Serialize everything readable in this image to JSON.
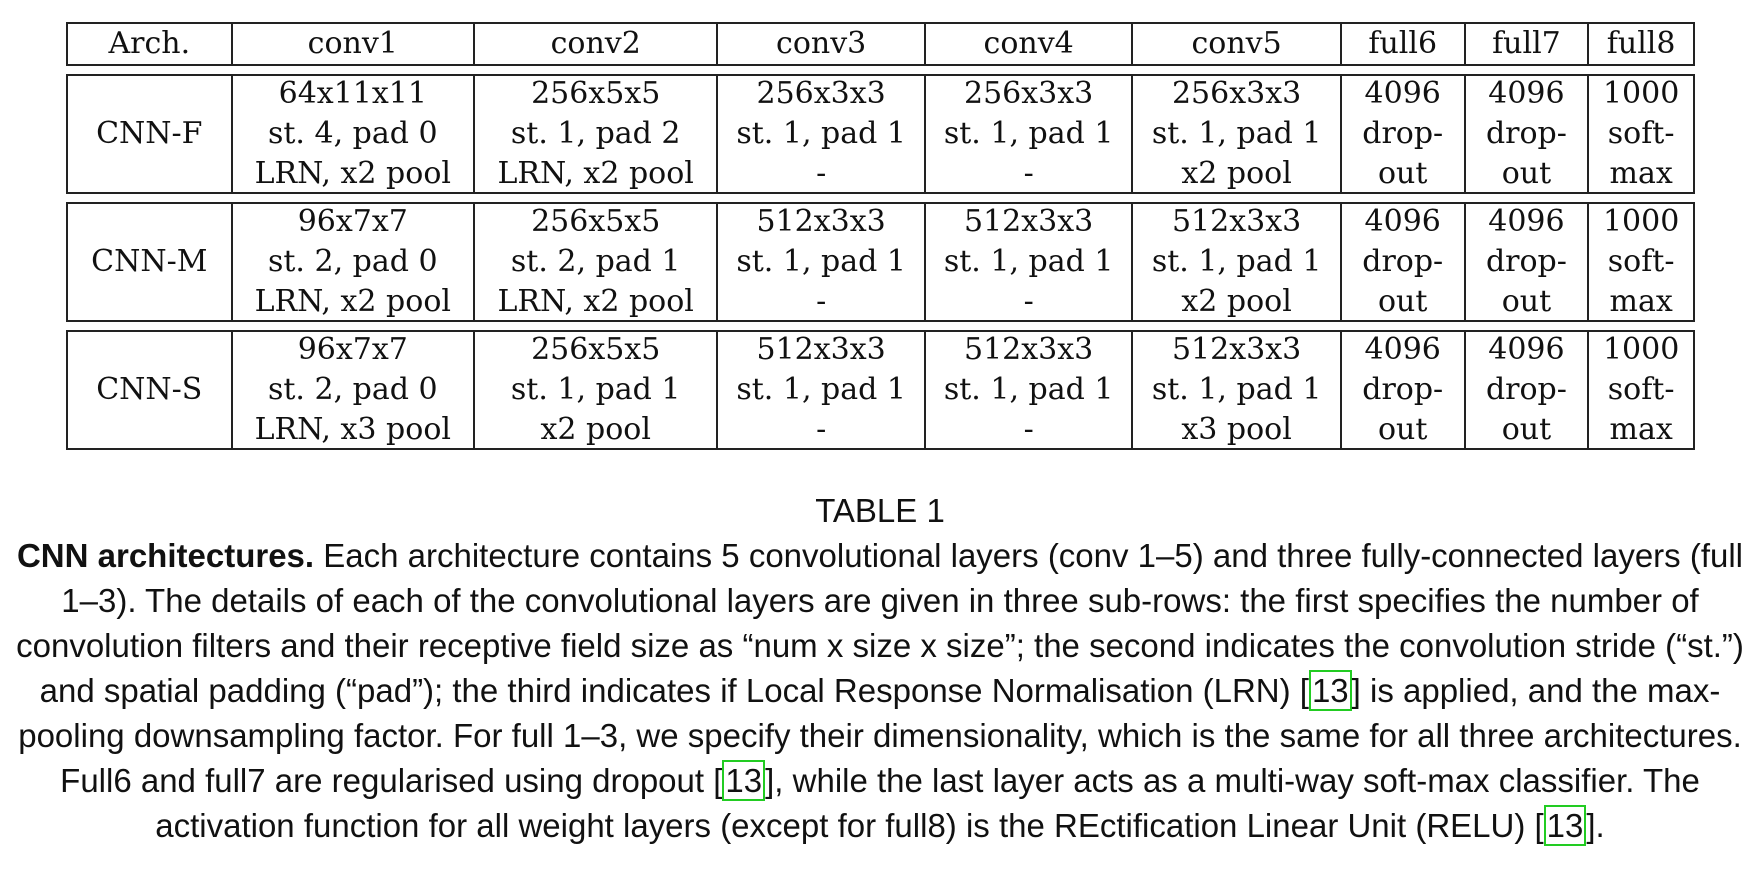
{
  "table": {
    "header": [
      "Arch.",
      "conv1",
      "conv2",
      "conv3",
      "conv4",
      "conv5",
      "full6",
      "full7",
      "full8"
    ],
    "rows": [
      {
        "arch": "CNN-F",
        "cells": [
          [
            "64x11x11",
            "st. 4, pad 0",
            "LRN, x2 pool"
          ],
          [
            "256x5x5",
            "st. 1, pad 2",
            "LRN, x2 pool"
          ],
          [
            "256x3x3",
            "st. 1, pad 1",
            "-"
          ],
          [
            "256x3x3",
            "st. 1, pad 1",
            "-"
          ],
          [
            "256x3x3",
            "st. 1, pad 1",
            "x2 pool"
          ],
          [
            "4096",
            "drop-",
            "out"
          ],
          [
            "4096",
            "drop-",
            "out"
          ],
          [
            "1000",
            "soft-",
            "max"
          ]
        ]
      },
      {
        "arch": "CNN-M",
        "cells": [
          [
            "96x7x7",
            "st. 2, pad 0",
            "LRN, x2 pool"
          ],
          [
            "256x5x5",
            "st. 2, pad 1",
            "LRN, x2 pool"
          ],
          [
            "512x3x3",
            "st. 1, pad 1",
            "-"
          ],
          [
            "512x3x3",
            "st. 1, pad 1",
            "-"
          ],
          [
            "512x3x3",
            "st. 1, pad 1",
            "x2 pool"
          ],
          [
            "4096",
            "drop-",
            "out"
          ],
          [
            "4096",
            "drop-",
            "out"
          ],
          [
            "1000",
            "soft-",
            "max"
          ]
        ]
      },
      {
        "arch": "CNN-S",
        "cells": [
          [
            "96x7x7",
            "st. 2, pad 0",
            "LRN, x3 pool"
          ],
          [
            "256x5x5",
            "st. 1, pad 1",
            "x2 pool"
          ],
          [
            "512x3x3",
            "st. 1, pad 1",
            "-"
          ],
          [
            "512x3x3",
            "st. 1, pad 1",
            "-"
          ],
          [
            "512x3x3",
            "st. 1, pad 1",
            "x3 pool"
          ],
          [
            "4096",
            "drop-",
            "out"
          ],
          [
            "4096",
            "drop-",
            "out"
          ],
          [
            "1000",
            "soft-",
            "max"
          ]
        ]
      }
    ]
  },
  "caption": {
    "label": "TABLE 1",
    "bold": "CNN architectures.",
    "segments": [
      " Each architecture contains 5 convolutional layers (conv 1–5) and three fully-connected layers (full 1–3). The details of each of the convolutional layers are given in three sub-rows: the first specifies the number of convolution filters and their receptive field size as “num x size x size”; the second indicates the convolution stride (“st.”) and spatial padding (“pad”); the third indicates if Local Response Normalisation (LRN) [",
      "] is applied, and the max-pooling downsampling factor. For full 1–3, we specify their dimensionality, which is the same for all three architectures. Full6 and full7 are regularised using dropout [",
      "], while the last layer acts as a multi-way soft-max classifier. The activation function for all weight layers (except for full8) is the REctification Linear Unit (RELU) [",
      "]."
    ],
    "citation": "13"
  }
}
